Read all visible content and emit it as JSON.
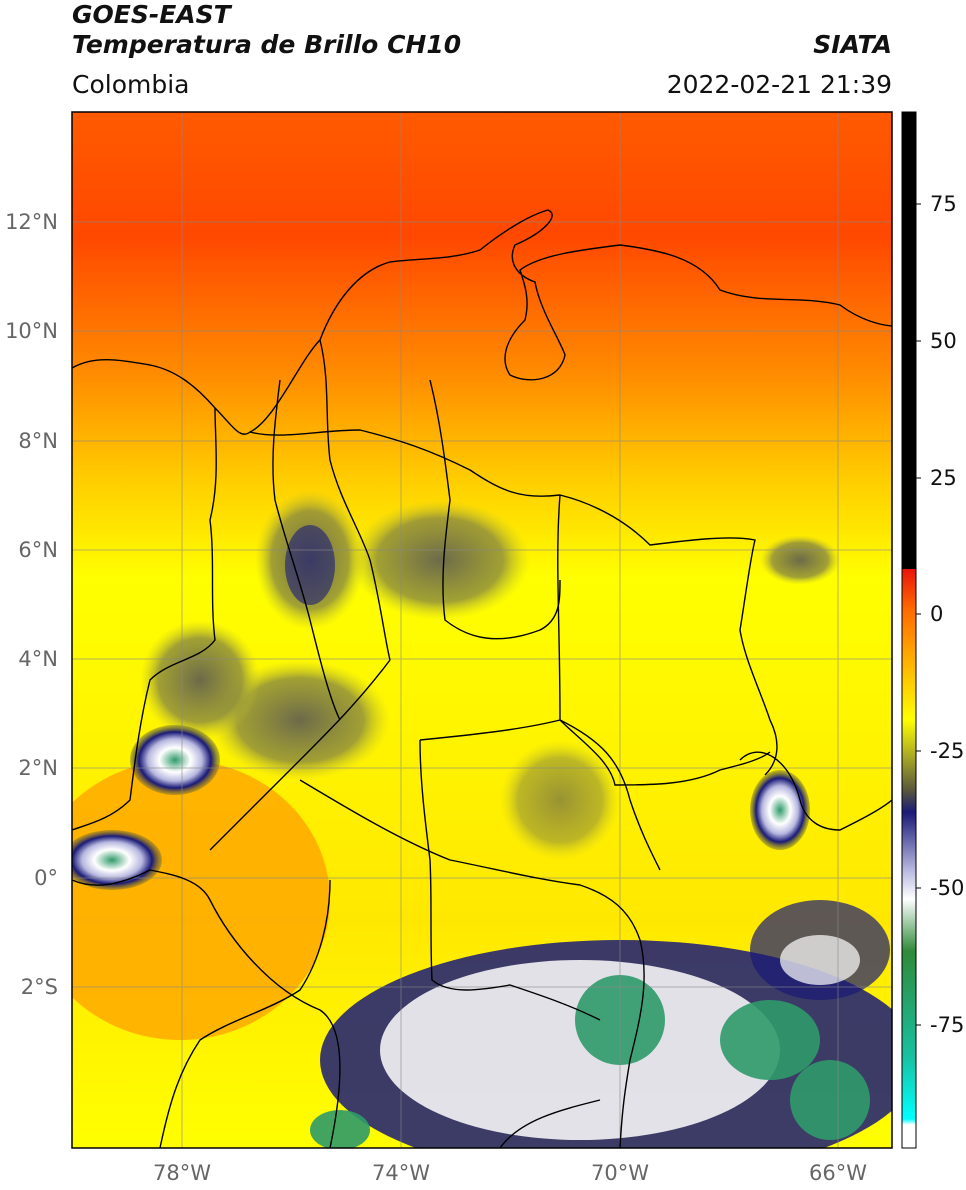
{
  "header": {
    "line1": "GOES-EAST",
    "line2": "Temperatura de Brillo CH10",
    "brand": "SIATA",
    "region": "Colombia",
    "timestamp": "2022-02-21 21:39"
  },
  "map": {
    "lat_labels": [
      "12°N",
      "10°N",
      "8°N",
      "6°N",
      "4°N",
      "2°N",
      "0°",
      "2°S"
    ],
    "lon_labels": [
      "78°W",
      "74°W",
      "70°W",
      "66°W"
    ]
  },
  "colorbar": {
    "tick_labels": [
      "75",
      "50",
      "25",
      "0",
      "-25",
      "-50",
      "-75"
    ],
    "colors": [
      "#000000",
      "#e8140a",
      "#ff8a00",
      "#ffff00",
      "#5c5a3a",
      "#1a1a78",
      "#ffffff",
      "#2f8a3a",
      "#18c0a0",
      "#00ffff"
    ]
  }
}
